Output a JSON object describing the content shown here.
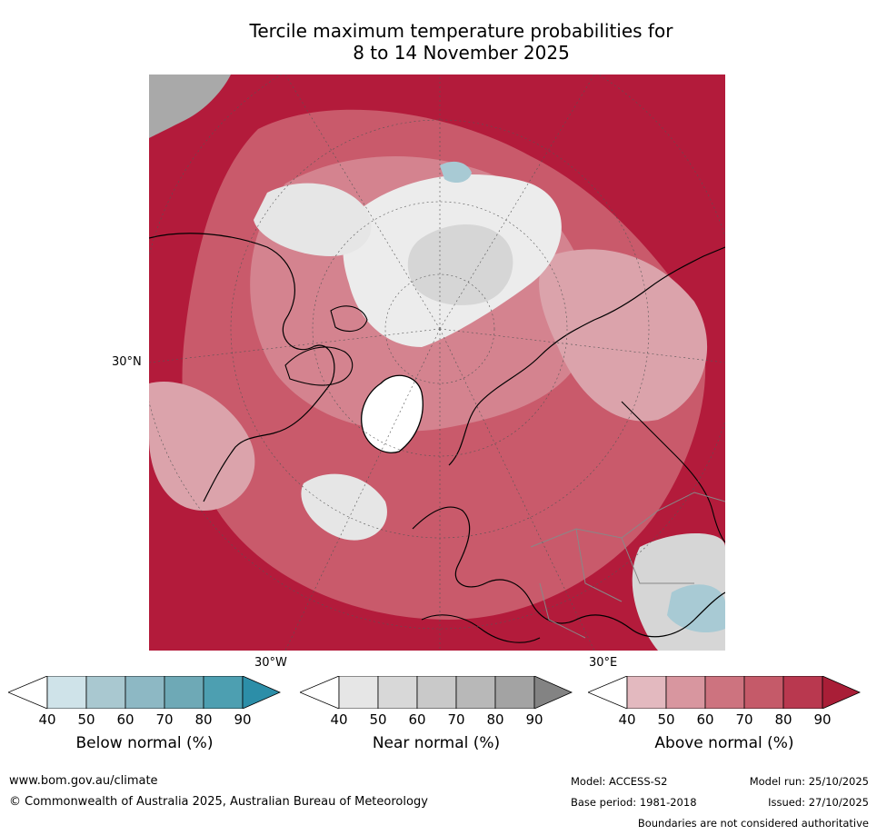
{
  "title": {
    "line1": "Tercile maximum temperature probabilities for",
    "line2": "8 to 14 November 2025"
  },
  "map": {
    "lat_label": "30°N",
    "lon_left_label": "30°W",
    "lon_right_label": "30°E",
    "colors": {
      "above_90": "#b31b3b",
      "above_80": "#c23a52",
      "above_70": "#c95a6b",
      "above_60": "#d4838f",
      "above_50": "#dba3ab",
      "near": "#d6d6d6",
      "near_light": "#ececec",
      "near_dark": "#a9a9a9",
      "below": "#a8cad4"
    }
  },
  "colorbars": [
    {
      "name": "below",
      "label": "Below normal (%)",
      "ticks": [
        "40",
        "50",
        "60",
        "70",
        "80",
        "90"
      ],
      "colors": [
        "#cfe3e9",
        "#a9c8d0",
        "#8db8c4",
        "#6ea9b6",
        "#4d9fb1",
        "#2c8ea8"
      ]
    },
    {
      "name": "near",
      "label": "Near normal (%)",
      "ticks": [
        "40",
        "50",
        "60",
        "70",
        "80",
        "90"
      ],
      "colors": [
        "#e6e6e6",
        "#d8d8d8",
        "#c9c9c9",
        "#b8b8b8",
        "#a3a3a3",
        "#838383"
      ]
    },
    {
      "name": "above",
      "label": "Above normal (%)",
      "ticks": [
        "40",
        "50",
        "60",
        "70",
        "80",
        "90"
      ],
      "colors": [
        "#e3b9bf",
        "#d8969f",
        "#cd737f",
        "#c55a69",
        "#b9384f",
        "#a91e37"
      ]
    }
  ],
  "footer": {
    "url": "www.bom.gov.au/climate",
    "copyright": "© Commonwealth of Australia 2025, Australian Bureau of Meteorology",
    "model": "Model: ACCESS-S2",
    "model_run": "Model run: 25/10/2025",
    "base_period": "Base period: 1981-2018",
    "issued": "Issued: 27/10/2025",
    "disclaimer": "Boundaries are not considered authoritative"
  }
}
